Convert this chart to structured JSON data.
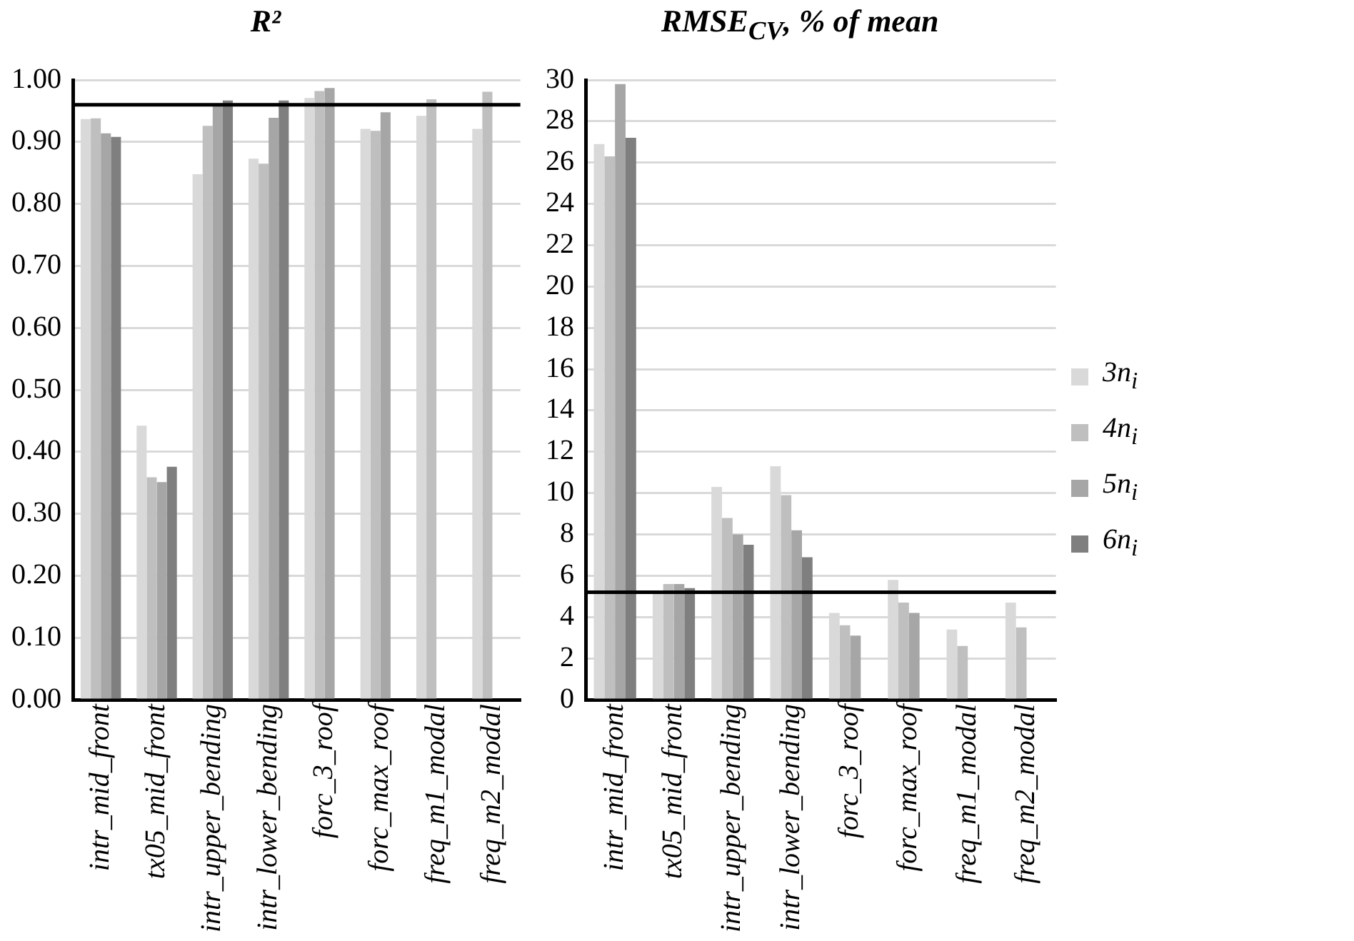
{
  "chart_data": [
    {
      "type": "bar",
      "title": "R²",
      "categories": [
        "intr_mid_front",
        "tx05_mid_front",
        "intr_upper_bending",
        "intr_lower_bending",
        "forc_3_roof",
        "forc_max_roof",
        "freq_m1_modal",
        "freq_m2_modal"
      ],
      "series": [
        {
          "color": "#d9d9d9",
          "values": [
            0.937,
            0.442,
            0.848,
            0.873,
            0.971,
            0.921,
            0.942,
            0.921
          ]
        },
        {
          "color": "#bfbfbf",
          "values": [
            0.938,
            0.359,
            0.926,
            0.865,
            0.982,
            0.918,
            0.969,
            0.981
          ]
        },
        {
          "color": "#a6a6a6",
          "values": [
            0.914,
            0.351,
            0.961,
            0.939,
            0.987,
            0.948,
            null,
            null
          ]
        },
        {
          "color": "#7f7f7f",
          "values": [
            0.908,
            0.376,
            0.967,
            0.967,
            null,
            null,
            null,
            null
          ]
        }
      ],
      "ylim": [
        0,
        1
      ],
      "yticks": [
        {
          "value": 0,
          "label": "0.00"
        },
        {
          "value": 0.1,
          "label": "0.10"
        },
        {
          "value": 0.2,
          "label": "0.20"
        },
        {
          "value": 0.3,
          "label": "0.30"
        },
        {
          "value": 0.4,
          "label": "0.40"
        },
        {
          "value": 0.5,
          "label": "0.50"
        },
        {
          "value": 0.6,
          "label": "0.60"
        },
        {
          "value": 0.7,
          "label": "0.70"
        },
        {
          "value": 0.8,
          "label": "0.80"
        },
        {
          "value": 0.9,
          "label": "0.90"
        },
        {
          "value": 1,
          "label": "1.00"
        }
      ],
      "ref_lines": [
        {
          "axis": "y",
          "value": 0.96,
          "color": "#000000"
        }
      ],
      "grid": "y",
      "legend": false
    },
    {
      "type": "bar",
      "title": "RMSE$_{CV}$, % of mean",
      "categories": [
        "intr_mid_front",
        "tx05_mid_front",
        "intr_upper_bending",
        "intr_lower_bending",
        "forc_3_roof",
        "forc_max_roof",
        "freq_m1_modal",
        "freq_m2_modal"
      ],
      "series": [
        {
          "name": "3n$_{i}$",
          "color": "#d9d9d9",
          "values": [
            26.9,
            5.2,
            10.3,
            11.3,
            4.2,
            5.8,
            3.4,
            4.7
          ]
        },
        {
          "name": "4n$_{i}$",
          "color": "#bfbfbf",
          "values": [
            26.3,
            5.6,
            8.8,
            9.9,
            3.6,
            4.7,
            2.6,
            3.5
          ]
        },
        {
          "name": "5n$_{i}$",
          "color": "#a6a6a6",
          "values": [
            29.8,
            5.6,
            8.0,
            8.2,
            3.1,
            4.2,
            null,
            null
          ]
        },
        {
          "name": "6n$_{i}$",
          "color": "#7f7f7f",
          "values": [
            27.2,
            5.4,
            7.5,
            6.9,
            null,
            null,
            null,
            null
          ]
        }
      ],
      "ylim": [
        0,
        30
      ],
      "yticks": [
        0,
        2,
        4,
        6,
        8,
        10,
        12,
        14,
        16,
        18,
        20,
        22,
        24,
        26,
        28,
        30
      ],
      "ref_lines": [
        {
          "axis": "y",
          "value": 5.2,
          "color": "#000000"
        }
      ],
      "grid": "y",
      "legend": "right"
    }
  ]
}
